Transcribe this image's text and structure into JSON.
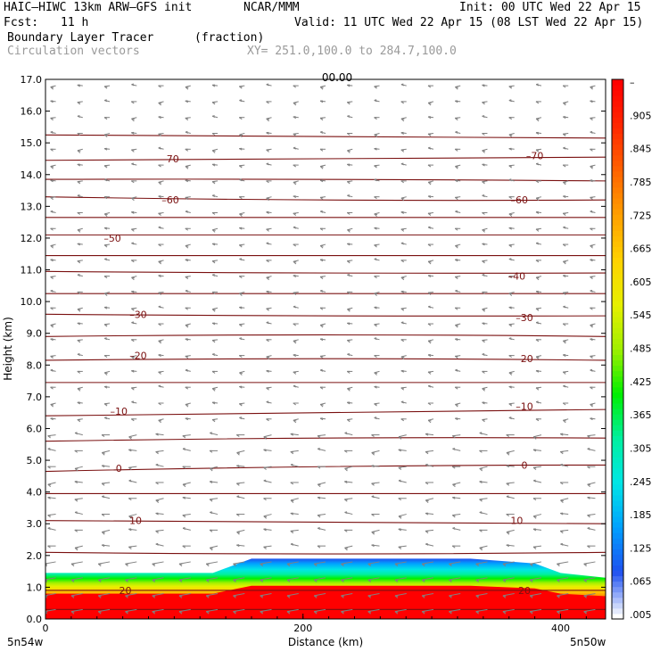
{
  "header": {
    "model": "HAIC–HIWC 13km ARW–GFS init",
    "org": "NCAR/MMM",
    "init": "Init: 00 UTC Wed 22 Apr 15",
    "fcst_label": "Fcst:",
    "fcst_value": "11 h",
    "valid": "Valid: 11 UTC Wed 22 Apr 15 (08 LST Wed 22 Apr 15)",
    "field": "Boundary Layer Tracer",
    "field_unit": "(fraction)",
    "vectors": "Circulation vectors",
    "xy": "XY= 251.0,100.0 to 284.7,100.0"
  },
  "colors": {
    "contour": "#7a1010",
    "vector": "#808080",
    "colorbar": [
      "#ffffff",
      "#1e50f0",
      "#00a0ff",
      "#00e6e6",
      "#00f0a0",
      "#00f000",
      "#a0f000",
      "#e6f000",
      "#ffd200",
      "#ffa000",
      "#ff6400",
      "#ff2800",
      "#ff0000"
    ]
  },
  "chart_data": {
    "type": "heatmap",
    "xlabel": "Distance (km)",
    "ylabel": "Height (km)",
    "xlim": [
      0,
      435
    ],
    "ylim": [
      0,
      17
    ],
    "x_ticks": [
      "0",
      "200",
      "400"
    ],
    "y_ticks": [
      "0.0",
      "1.0",
      "2.0",
      "3.0",
      "4.0",
      "5.0",
      "6.0",
      "7.0",
      "8.0",
      "9.0",
      "10.0",
      "11.0",
      "12.0",
      "13.0",
      "14.0",
      "15.0",
      "16.0",
      "17.0"
    ],
    "x_endpoints": [
      "5n54w",
      "5n50w"
    ],
    "colorbar_labels": [
      "–",
      ".905",
      ".845",
      ".785",
      ".725",
      ".665",
      ".605",
      ".545",
      ".485",
      ".425",
      ".365",
      ".305",
      ".245",
      ".185",
      ".125",
      ".065",
      ".005"
    ],
    "top_label": "00.00",
    "contour_labels": [
      {
        "value": "20",
        "x": 62,
        "y": 0.9
      },
      {
        "value": "20",
        "x": 372,
        "y": 0.9
      },
      {
        "value": "10",
        "x": 70,
        "y": 3.1
      },
      {
        "value": "10",
        "x": 366,
        "y": 3.1
      },
      {
        "value": "0",
        "x": 57,
        "y": 4.75
      },
      {
        "value": "0",
        "x": 372,
        "y": 4.85
      },
      {
        "value": "–10",
        "x": 57,
        "y": 6.55
      },
      {
        "value": "–10",
        "x": 372,
        "y": 6.7
      },
      {
        "value": "–20",
        "x": 72,
        "y": 8.3
      },
      {
        "value": "–20",
        "x": 372,
        "y": 8.2
      },
      {
        "value": "–30",
        "x": 72,
        "y": 9.6
      },
      {
        "value": "–30",
        "x": 372,
        "y": 9.5
      },
      {
        "value": "–40",
        "x": 366,
        "y": 10.8
      },
      {
        "value": "–50",
        "x": 52,
        "y": 12.0
      },
      {
        "value": "–60",
        "x": 97,
        "y": 13.2
      },
      {
        "value": "–60",
        "x": 368,
        "y": 13.2
      },
      {
        "value": "–70",
        "x": 97,
        "y": 14.5
      },
      {
        "value": "–70",
        "x": 380,
        "y": 14.6
      }
    ],
    "contour_levels": [
      {
        "value": 30,
        "heights": [
          0.3,
          0.3,
          0.3
        ]
      },
      {
        "value": 20,
        "heights": [
          0.9,
          0.9,
          0.9
        ]
      },
      {
        "value": 15,
        "heights": [
          2.1,
          2.05,
          2.1
        ]
      },
      {
        "value": 10,
        "heights": [
          3.1,
          3.05,
          3.0
        ]
      },
      {
        "value": 5,
        "heights": [
          3.95,
          3.95,
          3.95
        ]
      },
      {
        "value": 0,
        "heights": [
          4.65,
          4.8,
          4.85
        ]
      },
      {
        "value": -5,
        "heights": [
          5.6,
          5.7,
          5.7
        ]
      },
      {
        "value": -10,
        "heights": [
          6.4,
          6.5,
          6.6
        ]
      },
      {
        "value": -15,
        "heights": [
          7.45,
          7.45,
          7.45
        ]
      },
      {
        "value": -20,
        "heights": [
          8.15,
          8.2,
          8.15
        ]
      },
      {
        "value": -25,
        "heights": [
          8.9,
          8.95,
          8.9
        ]
      },
      {
        "value": -30,
        "heights": [
          9.6,
          9.55,
          9.55
        ]
      },
      {
        "value": -35,
        "heights": [
          10.25,
          10.25,
          10.25
        ]
      },
      {
        "value": -40,
        "heights": [
          10.95,
          10.9,
          10.9
        ]
      },
      {
        "value": -45,
        "heights": [
          11.45,
          11.45,
          11.45
        ]
      },
      {
        "value": -50,
        "heights": [
          12.1,
          12.1,
          12.1
        ]
      },
      {
        "value": -55,
        "heights": [
          12.65,
          12.65,
          12.65
        ]
      },
      {
        "value": -60,
        "heights": [
          13.3,
          13.2,
          13.2
        ]
      },
      {
        "value": -65,
        "heights": [
          13.85,
          13.85,
          13.8
        ]
      },
      {
        "value": -70,
        "heights": [
          14.45,
          14.5,
          14.55
        ]
      },
      {
        "value": -75,
        "heights": [
          15.25,
          15.2,
          15.15
        ]
      }
    ],
    "boundary_layer_top": {
      "x": [
        0,
        130,
        140,
        160,
        330,
        380,
        400,
        435
      ],
      "height": [
        1.45,
        1.45,
        1.6,
        1.9,
        1.9,
        1.75,
        1.45,
        1.3
      ]
    },
    "vectors": {
      "direction": "westward",
      "speed_scale": "light"
    }
  }
}
